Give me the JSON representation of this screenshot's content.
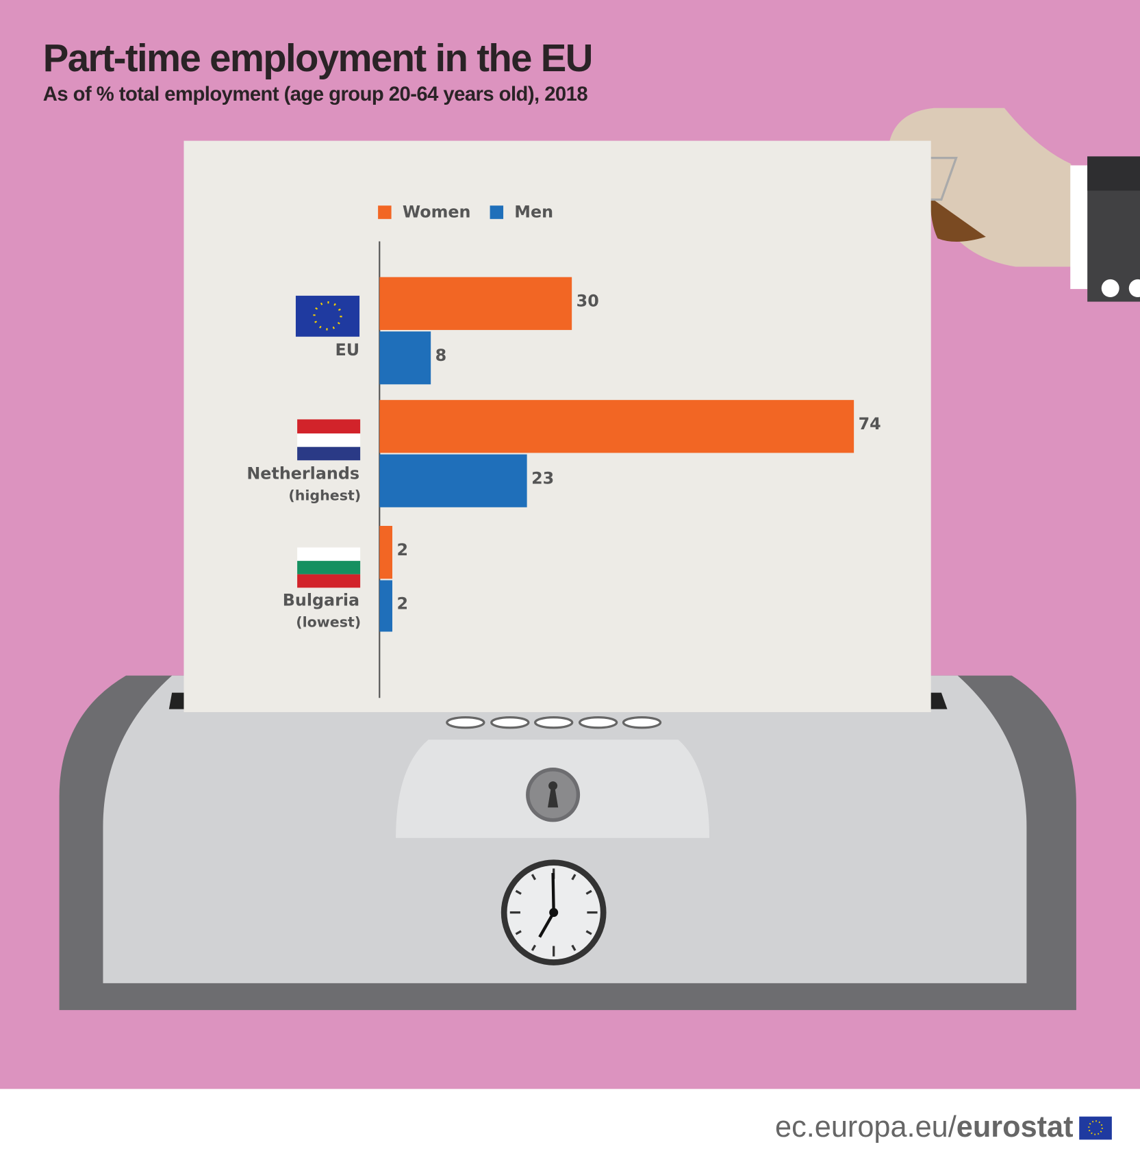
{
  "chart_data": {
    "type": "bar",
    "orientation": "horizontal",
    "title": "Part-time employment in the EU",
    "subtitle": "As of % total employment (age group 20-64 years old), 2018",
    "categories": [
      "EU",
      "Netherlands",
      "Bulgaria"
    ],
    "category_notes": [
      null,
      "(highest)",
      "(lowest)"
    ],
    "series": [
      {
        "name": "Women",
        "color": "#f26624",
        "values": [
          30,
          74,
          2
        ]
      },
      {
        "name": "Men",
        "color": "#1f6fba",
        "values": [
          8,
          23,
          2
        ]
      }
    ],
    "source": [
      "ec.europa.eu/",
      "eurostat"
    ]
  }
}
